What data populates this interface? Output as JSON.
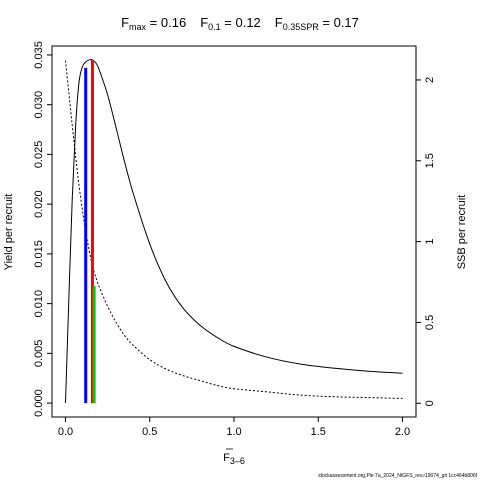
{
  "title": {
    "fmax": {
      "sym": "F",
      "sub": "max",
      "val": " = 0.16"
    },
    "f01": {
      "sym": "F",
      "sub": "0.1",
      "val": " = 0.12"
    },
    "fspr": {
      "sym": "F",
      "sub": "0.35SPR",
      "val": " = 0.17"
    }
  },
  "axes": {
    "xlabel": {
      "sym": "F",
      "sub": "3–6"
    },
    "ylabel_left": "Yield per recruit",
    "ylabel_right": "SSB per recruit"
  },
  "footer": "stockassessment.org,Ple.7a_2024_NIGFS_rev.r19074_git 1cc464b806f",
  "chart_data": {
    "type": "line",
    "x_ticks": [
      "0.0",
      "0.5",
      "1.0",
      "1.5",
      "2.0"
    ],
    "x_tick_values": [
      0,
      0.5,
      1.0,
      1.5,
      2.0
    ],
    "y_left_ticks": [
      "0.000",
      "0.005",
      "0.010",
      "0.015",
      "0.020",
      "0.025",
      "0.030",
      "0.035"
    ],
    "y_left_tick_values": [
      0,
      0.005,
      0.01,
      0.015,
      0.02,
      0.025,
      0.03,
      0.035
    ],
    "y_right_ticks": [
      "0",
      "0.5",
      "1",
      "1.5",
      "2"
    ],
    "y_right_tick_values": [
      0,
      0.5,
      1,
      1.5,
      2
    ],
    "xlim": [
      0,
      2.0
    ],
    "ylim_left": [
      0,
      0.035
    ],
    "ylim_right": [
      0,
      2.15
    ],
    "series": [
      {
        "axis": "left",
        "style": "solid",
        "color": "#000000",
        "x": [
          0,
          0.02,
          0.04,
          0.06,
          0.08,
          0.1,
          0.12,
          0.14,
          0.16,
          0.18,
          0.2,
          0.25,
          0.3,
          0.35,
          0.4,
          0.5,
          0.6,
          0.7,
          0.8,
          0.9,
          1.0,
          1.2,
          1.4,
          1.6,
          1.8,
          2.0
        ],
        "y": [
          0,
          0.0105,
          0.0205,
          0.0278,
          0.0322,
          0.0338,
          0.0343,
          0.0345,
          0.0345,
          0.0342,
          0.0335,
          0.031,
          0.0277,
          0.0243,
          0.0212,
          0.016,
          0.0121,
          0.0095,
          0.0078,
          0.0066,
          0.0057,
          0.0046,
          0.0039,
          0.0035,
          0.0032,
          0.003
        ]
      },
      {
        "axis": "right",
        "style": "dotted",
        "color": "#000000",
        "x": [
          0,
          0.02,
          0.04,
          0.06,
          0.08,
          0.1,
          0.12,
          0.14,
          0.16,
          0.18,
          0.2,
          0.25,
          0.3,
          0.35,
          0.4,
          0.5,
          0.6,
          0.7,
          0.8,
          0.9,
          1.0,
          1.2,
          1.4,
          1.6,
          1.8,
          2.0
        ],
        "y": [
          2.12,
          1.92,
          1.72,
          1.53,
          1.35,
          1.2,
          1.06,
          0.95,
          0.85,
          0.78,
          0.72,
          0.6,
          0.5,
          0.42,
          0.36,
          0.27,
          0.21,
          0.17,
          0.14,
          0.11,
          0.09,
          0.07,
          0.05,
          0.04,
          0.035,
          0.03
        ]
      }
    ],
    "reference_lines": [
      {
        "label": "Fmax",
        "x": 0.16,
        "y": 0.0345,
        "axis": "left",
        "color": "#ff0000"
      },
      {
        "label": "F0.1",
        "x": 0.12,
        "y": 0.0337,
        "axis": "left",
        "color": "#0000ff"
      },
      {
        "label": "F0.35SPR",
        "x": 0.17,
        "y": 0.725,
        "axis": "right",
        "color": "#00cc00"
      }
    ]
  }
}
